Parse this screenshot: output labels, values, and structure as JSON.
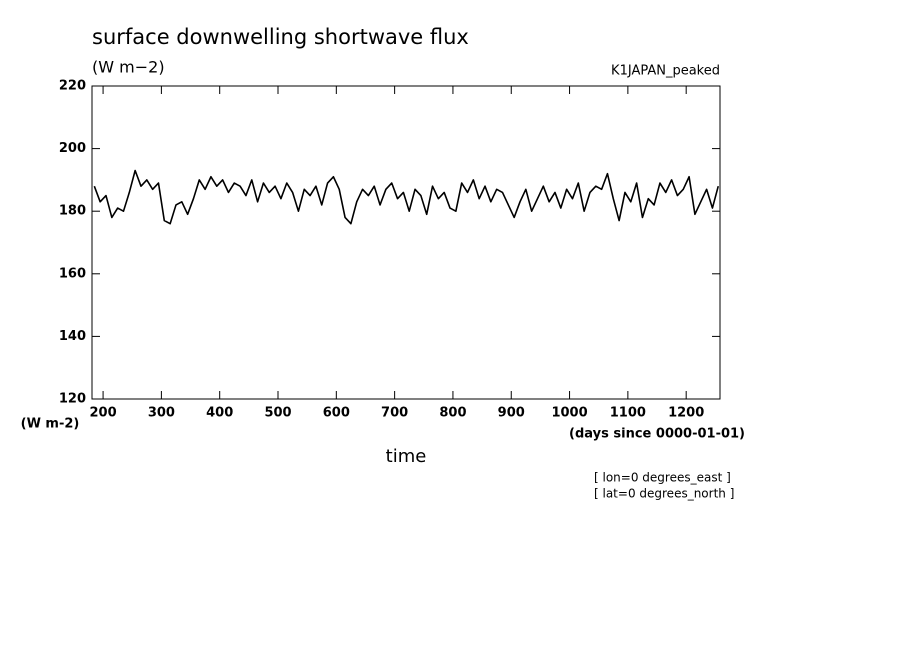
{
  "chart_data": {
    "type": "line",
    "title": "surface downwelling shortwave flux",
    "subtitle": "(W m−2)",
    "dataset": "K1JAPAN_peaked",
    "y_label": "(W m-2)",
    "x_units": "(days since 0000-01-01)",
    "x_label": "time",
    "annotations": [
      "[ lon=0 degrees_east ]",
      "[ lat=0 degrees_north ]"
    ],
    "xlim": [
      181,
      1258
    ],
    "ylim": [
      120,
      220
    ],
    "xticks": [
      200,
      300,
      400,
      500,
      600,
      700,
      800,
      900,
      1000,
      1100,
      1200
    ],
    "yticks": [
      120,
      140,
      160,
      180,
      200,
      220
    ],
    "series": [
      {
        "color": "#000000",
        "x": [
          185,
          195,
          205,
          215,
          225,
          235,
          245,
          255,
          265,
          275,
          285,
          295,
          305,
          315,
          325,
          335,
          345,
          355,
          365,
          375,
          385,
          395,
          405,
          415,
          425,
          435,
          445,
          455,
          465,
          475,
          485,
          495,
          505,
          515,
          525,
          535,
          545,
          555,
          565,
          575,
          585,
          595,
          605,
          615,
          625,
          635,
          645,
          655,
          665,
          675,
          685,
          695,
          705,
          715,
          725,
          735,
          745,
          755,
          765,
          775,
          785,
          795,
          805,
          815,
          825,
          835,
          845,
          855,
          865,
          875,
          885,
          895,
          905,
          915,
          925,
          935,
          945,
          955,
          965,
          975,
          985,
          995,
          1005,
          1015,
          1025,
          1035,
          1045,
          1055,
          1065,
          1075,
          1085,
          1095,
          1105,
          1115,
          1125,
          1135,
          1145,
          1155,
          1165,
          1175,
          1185,
          1195,
          1205,
          1215,
          1225,
          1235,
          1245,
          1255
        ],
        "values": [
          188,
          183,
          185,
          178,
          181,
          180,
          186,
          193,
          188,
          190,
          187,
          189,
          177,
          176,
          182,
          183,
          179,
          184,
          190,
          187,
          191,
          188,
          190,
          186,
          189,
          188,
          185,
          190,
          183,
          189,
          186,
          188,
          184,
          189,
          186,
          180,
          187,
          185,
          188,
          182,
          189,
          191,
          187,
          178,
          176,
          183,
          187,
          185,
          188,
          182,
          187,
          189,
          184,
          186,
          180,
          187,
          185,
          179,
          188,
          184,
          186,
          181,
          180,
          189,
          186,
          190,
          184,
          188,
          183,
          187,
          186,
          182,
          178,
          183,
          187,
          180,
          184,
          188,
          183,
          186,
          181,
          187,
          184,
          189,
          180,
          186,
          188,
          187,
          192,
          184,
          177,
          186,
          183,
          189,
          178,
          184,
          182,
          189,
          186,
          190,
          185,
          187,
          191,
          179,
          183,
          187,
          181,
          188
        ]
      }
    ]
  }
}
